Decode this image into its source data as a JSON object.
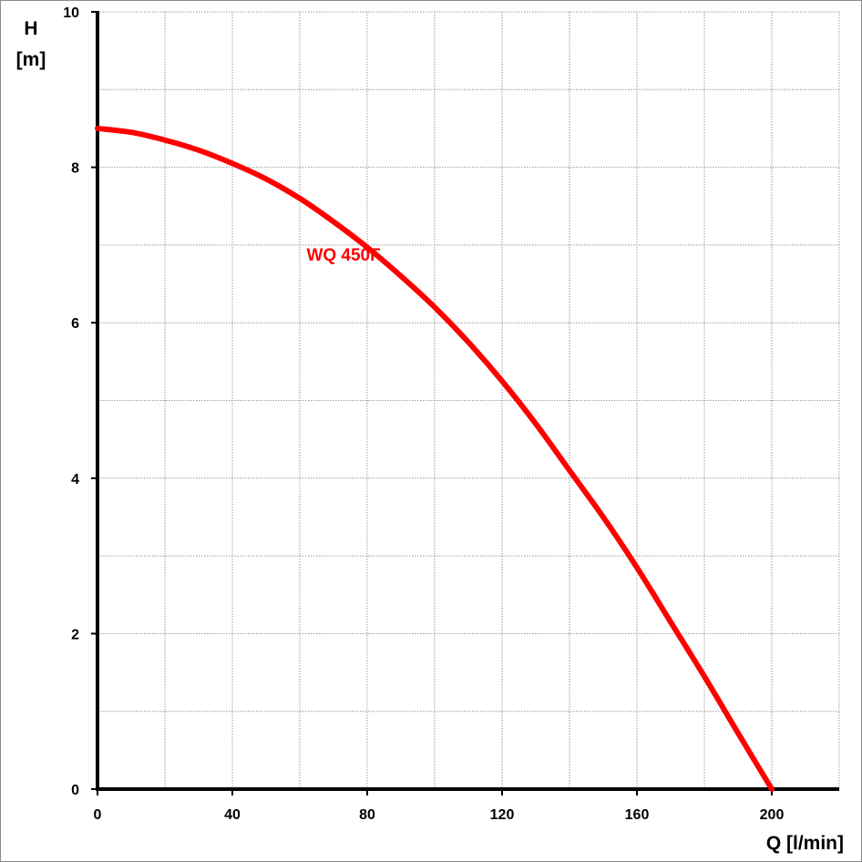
{
  "chart_data": {
    "type": "line",
    "xlabel": "Q [l/min]",
    "ylabel": [
      "H",
      "[m]"
    ],
    "xlim": [
      0,
      220
    ],
    "ylim": [
      0,
      10
    ],
    "x_ticks": [
      0,
      40,
      80,
      120,
      160,
      200
    ],
    "y_ticks": [
      0,
      2,
      4,
      6,
      8,
      10
    ],
    "x_grid_step": 20,
    "y_grid_step": 1,
    "grid": true,
    "series": [
      {
        "name": "WQ 450F",
        "color": "#ff0000",
        "x": [
          0,
          10,
          20,
          30,
          40,
          50,
          60,
          70,
          80,
          90,
          100,
          110,
          120,
          130,
          140,
          150,
          160,
          170,
          180,
          190,
          200
        ],
        "y": [
          8.5,
          8.45,
          8.35,
          8.22,
          8.05,
          7.85,
          7.6,
          7.3,
          6.97,
          6.6,
          6.2,
          5.75,
          5.25,
          4.7,
          4.1,
          3.5,
          2.85,
          2.15,
          1.45,
          0.72,
          0.0
        ]
      }
    ],
    "annotations": [
      {
        "text": "WQ 450F",
        "x": 73,
        "y": 6.8
      }
    ]
  }
}
